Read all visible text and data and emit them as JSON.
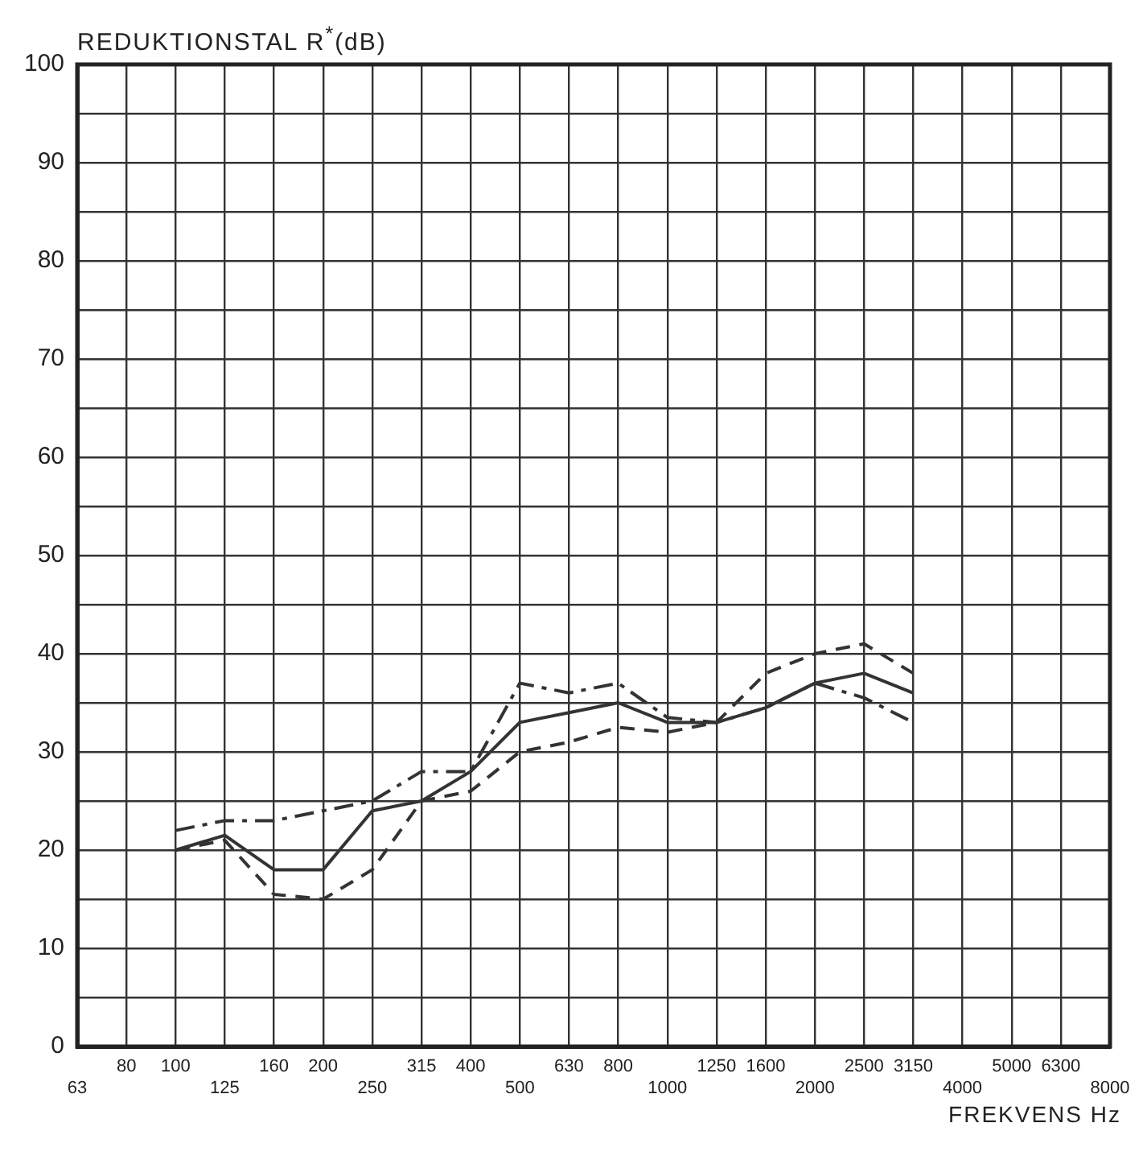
{
  "chart_data": {
    "type": "line",
    "ylabel": "REDUKTIONSTAL R$^{*}$(dB)",
    "xlabel": "FREKVENS Hz",
    "categories": [
      "63",
      "80",
      "100",
      "125",
      "160",
      "200",
      "250",
      "315",
      "400",
      "500",
      "630",
      "800",
      "1000",
      "1250",
      "1600",
      "2000",
      "2500",
      "3150",
      "4000",
      "5000",
      "6300",
      "8000"
    ],
    "series": [
      {
        "color": "#333333",
        "line_style": "solid",
        "values": [
          null,
          null,
          20,
          21.5,
          18,
          18,
          24,
          25,
          28,
          33,
          34,
          35,
          33,
          33,
          34.5,
          37,
          38,
          36,
          null,
          null,
          null,
          null
        ]
      },
      {
        "color": "#333333",
        "line_style": "dashed",
        "values": [
          null,
          null,
          20,
          21,
          15.5,
          15,
          18,
          25,
          26,
          30,
          31,
          32.5,
          32,
          33,
          38,
          40,
          41,
          38,
          null,
          null,
          null,
          null
        ]
      },
      {
        "color": "#333333",
        "line_style": "dashdot",
        "values": [
          null,
          null,
          22,
          23,
          23,
          24,
          25,
          28,
          28,
          37,
          36,
          37,
          33.5,
          33,
          34.5,
          37,
          35.5,
          33,
          null,
          null,
          null,
          null
        ]
      }
    ],
    "ylim": [
      0,
      100
    ],
    "yticks": [
      0,
      {
        "value": 5,
        "label": null
      },
      10,
      {
        "value": 15,
        "label": null
      },
      20,
      {
        "value": 25,
        "label": null
      },
      30,
      {
        "value": 35,
        "label": null
      },
      40,
      {
        "value": 45,
        "label": null
      },
      50,
      {
        "value": 55,
        "label": null
      },
      60,
      {
        "value": 65,
        "label": null
      },
      70,
      {
        "value": 75,
        "label": null
      },
      80,
      {
        "value": 85,
        "label": null
      },
      90,
      {
        "value": 95,
        "label": null
      },
      100
    ],
    "grid": true,
    "legend": false,
    "marker": "none"
  }
}
